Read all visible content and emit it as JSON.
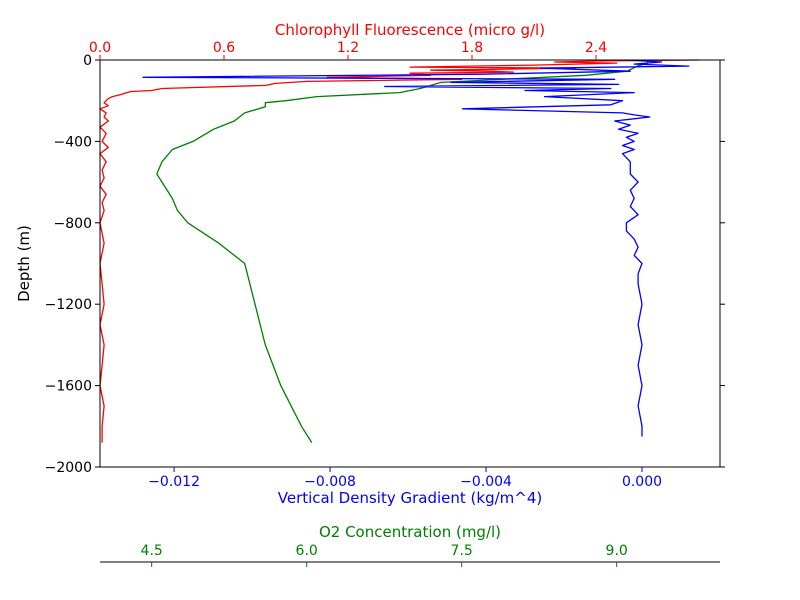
{
  "chart_data": {
    "type": "line",
    "ylabel": "Depth (m)",
    "ylim": [
      -2000,
      0
    ],
    "yticks": [
      0,
      -400,
      -800,
      -1200,
      -1600,
      -2000
    ],
    "ytick_labels": [
      "0",
      "−400",
      "−800",
      "−1200",
      "−1600",
      "−2000"
    ],
    "grid": false,
    "axes": [
      {
        "id": "density",
        "label": "Vertical Density Gradient (kg/m^4)",
        "position": "bottom",
        "color": "#0000ff",
        "xlim": [
          -0.0139,
          0.002
        ],
        "ticks": [
          -0.012,
          -0.008,
          -0.004,
          0.0
        ],
        "tick_labels": [
          "−0.012",
          "−0.008",
          "−0.004",
          "0.000"
        ]
      },
      {
        "id": "chl",
        "label": "Chlorophyll Fluorescence (micro g/l)",
        "position": "top",
        "color": "#ff0000",
        "xlim": [
          0.0,
          3.0
        ],
        "ticks": [
          0.0,
          0.6,
          1.2,
          1.8,
          2.4
        ],
        "tick_labels": [
          "0.0",
          "0.6",
          "1.2",
          "1.8",
          "2.4"
        ]
      },
      {
        "id": "o2",
        "label": "O2 Concentration (mg/l)",
        "position": "bottom-offset",
        "color": "#008000",
        "xlim": [
          4.0,
          10.0
        ],
        "ticks": [
          4.5,
          6.0,
          7.5,
          9.0
        ],
        "tick_labels": [
          "4.5",
          "6.0",
          "7.5",
          "9.0"
        ]
      }
    ],
    "series": [
      {
        "axis": "chl",
        "color": "#ff0000",
        "depth": [
          0,
          -5,
          -10,
          -15,
          -20,
          -25,
          -35,
          -40,
          -50,
          -55,
          -60,
          -65,
          -75,
          -85,
          -95,
          -105,
          -115,
          -125,
          -140,
          -150,
          -155,
          -160,
          -170,
          -180,
          -190,
          -200,
          -210,
          -225,
          -240,
          -260,
          -280,
          -300,
          -330,
          -360,
          -400,
          -430,
          -460,
          -500,
          -540,
          -580,
          -620,
          -660,
          -700,
          -740,
          -800,
          -900,
          -1000,
          -1100,
          -1200,
          -1300,
          -1400,
          -1500,
          -1600,
          -1700,
          -1800,
          -1880
        ],
        "x": [
          2.9,
          2.4,
          2.2,
          2.5,
          2.3,
          2.1,
          1.5,
          2.3,
          1.6,
          1.9,
          2.0,
          1.5,
          1.6,
          1.1,
          1.75,
          1.0,
          0.85,
          0.8,
          0.3,
          0.25,
          0.15,
          0.13,
          0.1,
          0.06,
          0.04,
          0.03,
          0.02,
          0.04,
          0.0,
          0.03,
          0.02,
          0.04,
          0.0,
          0.03,
          0.01,
          0.04,
          0.0,
          0.03,
          0.01,
          0.02,
          0.0,
          0.03,
          0.01,
          0.02,
          0.0,
          0.02,
          0.0,
          0.01,
          0.02,
          0.0,
          0.02,
          0.01,
          0.0,
          0.02,
          0.01,
          0.01
        ]
      },
      {
        "axis": "o2",
        "color": "#008000",
        "depth": [
          0,
          -15,
          -30,
          -55,
          -75,
          -90,
          -110,
          -140,
          -160,
          -180,
          -200,
          -210,
          -230,
          -260,
          -300,
          -340,
          -400,
          -440,
          -500,
          -560,
          -600,
          -680,
          -740,
          -800,
          -900,
          -1000,
          -1200,
          -1400,
          -1600,
          -1800,
          -1880
        ],
        "x": [
          9.3,
          9.3,
          9.2,
          9.1,
          8.7,
          8.1,
          7.3,
          7.1,
          6.9,
          6.1,
          5.8,
          5.6,
          5.6,
          5.4,
          5.3,
          5.1,
          4.9,
          4.7,
          4.6,
          4.55,
          4.6,
          4.7,
          4.75,
          4.85,
          5.15,
          5.4,
          5.5,
          5.6,
          5.75,
          5.95,
          6.05
        ]
      },
      {
        "axis": "density",
        "color": "#0000ff",
        "depth": [
          0,
          -10,
          -20,
          -30,
          -40,
          -55,
          -70,
          -85,
          -95,
          -110,
          -120,
          -130,
          -140,
          -150,
          -160,
          -180,
          -200,
          -220,
          -240,
          -260,
          -270,
          -280,
          -300,
          -320,
          -340,
          -360,
          -380,
          -400,
          -420,
          -440,
          -460,
          -480,
          -500,
          -520,
          -560,
          -600,
          -640,
          -680,
          -720,
          -760,
          -800,
          -840,
          -880,
          -920,
          -960,
          -1000,
          -1050,
          -1100,
          -1200,
          -1300,
          -1400,
          -1500,
          -1600,
          -1700,
          -1800,
          -1850
        ],
        "x": [
          -0.0004,
          0.0005,
          -0.0002,
          0.0012,
          -0.0026,
          -0.0003,
          -0.0041,
          -0.0128,
          -0.0007,
          -0.0049,
          -0.0006,
          -0.0066,
          -0.0008,
          -0.003,
          -0.0002,
          -0.0025,
          -0.0005,
          -0.0008,
          -0.0046,
          -0.0005,
          -0.0002,
          0.0002,
          -0.0007,
          -0.0003,
          -0.0006,
          -0.0001,
          -0.0004,
          -0.0002,
          -0.0005,
          -0.0002,
          -0.0005,
          -0.0004,
          -0.0003,
          -0.0003,
          -0.0003,
          -0.0001,
          -0.0003,
          -0.0002,
          -0.0003,
          -0.0001,
          -0.0004,
          -0.0004,
          -0.0002,
          -0.0001,
          -0.0002,
          0.0,
          -0.0001,
          -0.0001,
          0.0,
          -0.0001,
          0.0,
          -0.0001,
          0.0,
          -0.0001,
          0.0,
          0.0
        ]
      }
    ]
  }
}
